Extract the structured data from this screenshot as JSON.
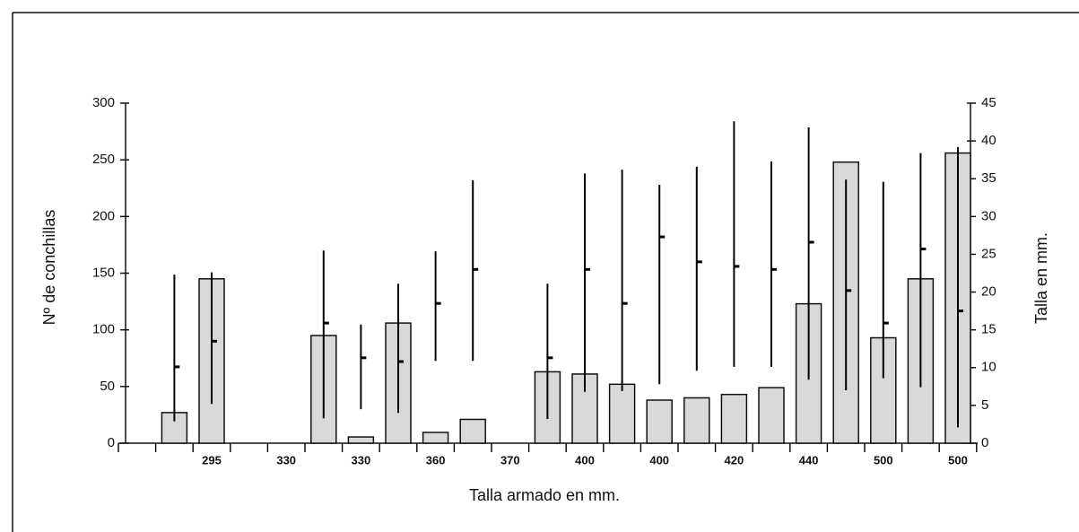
{
  "chart_data": {
    "type": "bar_range",
    "xlabel": "Talla armado en mm.",
    "ylabel": "Nº de conchillas",
    "y2label": "Talla en mm.",
    "categories": [
      null,
      null,
      "295",
      null,
      "330",
      null,
      "330",
      null,
      "360",
      null,
      "370",
      null,
      "400",
      null,
      "400",
      null,
      "420",
      null,
      "440",
      null,
      "500",
      null,
      "500"
    ],
    "series": [
      {
        "name": "Nº de conchillas",
        "color": "#d9d9d9",
        "values": [
          null,
          27,
          145,
          null,
          null,
          95,
          5.5,
          106,
          9.5,
          21,
          null,
          63,
          61,
          52,
          38,
          40,
          43,
          49,
          123,
          248,
          93,
          145,
          256
        ]
      },
      {
        "name": "Talla en mm.",
        "axis": "y2",
        "color": "#000000",
        "min": [
          null,
          2.9,
          5.2,
          null,
          null,
          3.3,
          4.5,
          4.0,
          10.9,
          10.9,
          null,
          3.2,
          6.8,
          6.9,
          7.8,
          9.6,
          10.1,
          10.1,
          8.4,
          7.0,
          8.6,
          7.4,
          2.1
        ],
        "max": [
          null,
          22.3,
          22.6,
          null,
          null,
          25.5,
          15.7,
          21.1,
          25.4,
          34.8,
          null,
          21.1,
          35.7,
          36.2,
          34.2,
          36.6,
          42.6,
          37.3,
          41.8,
          34.9,
          34.6,
          38.4,
          39.2
        ],
        "mean": [
          null,
          10.1,
          13.5,
          null,
          null,
          15.9,
          11.3,
          10.8,
          18.5,
          23.0,
          null,
          11.3,
          23.0,
          18.5,
          27.3,
          24.0,
          23.4,
          23.0,
          26.6,
          20.2,
          15.9,
          25.7,
          17.5
        ]
      }
    ],
    "ylim": [
      0,
      300
    ],
    "yticks": [
      0,
      50,
      100,
      150,
      200,
      250,
      300
    ],
    "y2lim": [
      0,
      45
    ],
    "y2ticks": [
      0,
      5,
      10,
      15,
      20,
      25,
      30,
      35,
      40,
      45
    ]
  }
}
